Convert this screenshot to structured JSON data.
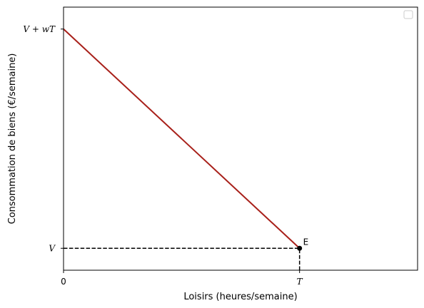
{
  "chart_data": {
    "type": "line",
    "title": "",
    "xlabel": "Loisirs (heures/semaine)",
    "ylabel": "Consommation de biens (€/semaine)",
    "xlim": [
      0,
      1.5
    ],
    "ylim": [
      -0.1,
      1.1
    ],
    "x_ticks": [
      {
        "value": 0,
        "label": "0",
        "math": false
      },
      {
        "value": 1,
        "label": "T",
        "math": true
      }
    ],
    "y_ticks": [
      {
        "value": 0,
        "label": "V",
        "math": true
      },
      {
        "value": 1,
        "label": "V + wT",
        "math": true
      }
    ],
    "series": [
      {
        "x": [
          0,
          1
        ],
        "y": [
          1,
          0
        ],
        "color": "#a8201a",
        "style": "solid"
      }
    ],
    "guides": [
      {
        "x": [
          0,
          1
        ],
        "y": [
          0,
          0
        ],
        "color": "#000000",
        "style": "dashed"
      },
      {
        "x": [
          1,
          1
        ],
        "y": [
          -0.1,
          0
        ],
        "color": "#000000",
        "style": "dashed"
      }
    ],
    "points": [
      {
        "x": 1,
        "y": 0,
        "label": "E",
        "color": "#000000"
      }
    ],
    "legend": {
      "placement": "top-right",
      "entries": []
    },
    "grid": false
  }
}
